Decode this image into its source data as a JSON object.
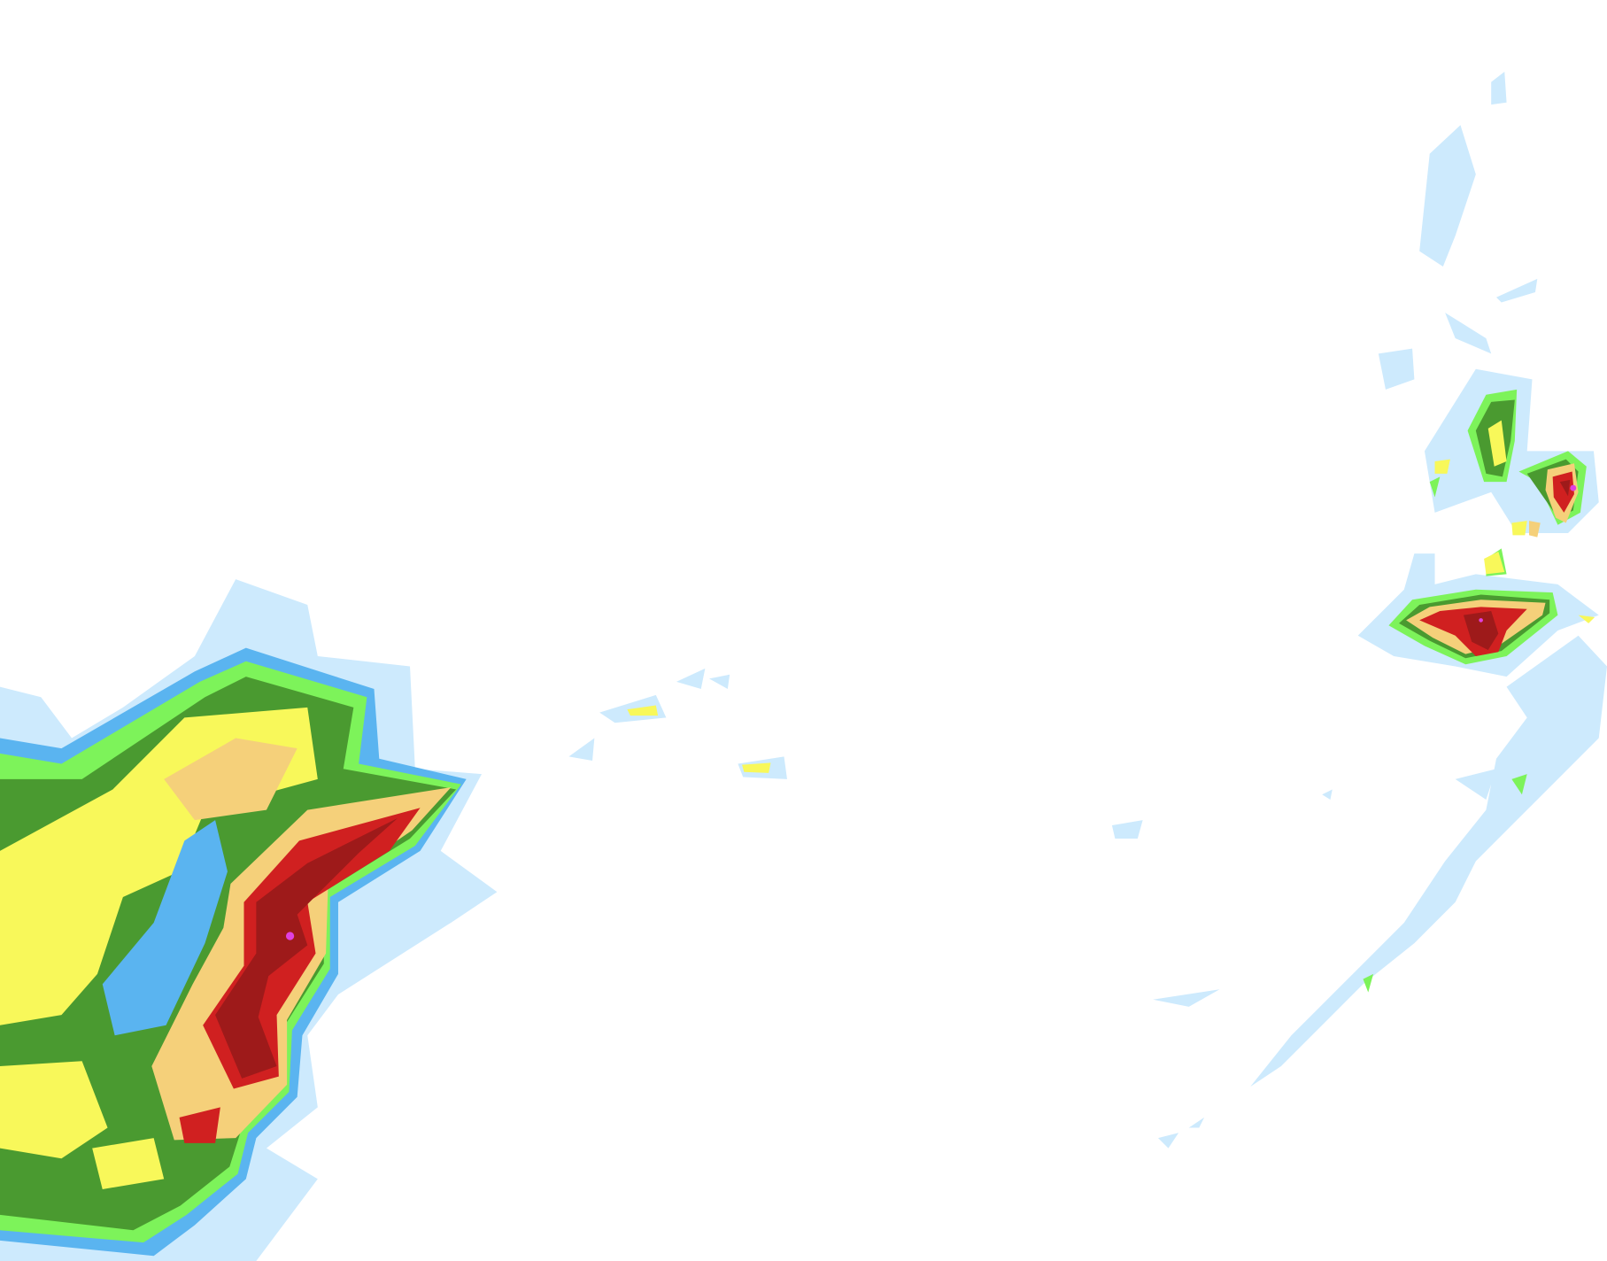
{
  "map": {
    "background": "#ffffff",
    "palette": {
      "very_light": "#cdeafd",
      "light": "#5ab4f0",
      "light_moderate": "#7df35a",
      "moderate": "#4a9a30",
      "moderate_heavy": "#f8f85a",
      "heavy": "#f5d07a",
      "very_heavy": "#d02020",
      "intense": "#9e1a1a",
      "extreme": "#e040e0"
    }
  }
}
